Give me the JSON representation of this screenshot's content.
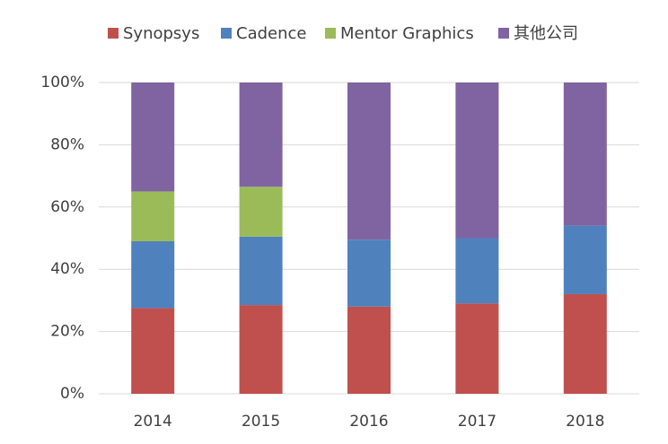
{
  "chart_data": {
    "type": "stacked_bar",
    "categories": [
      "2014",
      "2015",
      "2016",
      "2017",
      "2018"
    ],
    "series": [
      {
        "name": "Synopsys",
        "color": "#c0504d",
        "values": [
          27.5,
          28.5,
          28,
          29,
          32
        ]
      },
      {
        "name": "Cadence",
        "color": "#4f81bd",
        "values": [
          21.5,
          22,
          21.5,
          21,
          22
        ]
      },
      {
        "name": "Mentor Graphics",
        "color": "#9bbb59",
        "values": [
          16,
          16,
          0,
          0,
          0
        ]
      },
      {
        "name": "其他公司",
        "color": "#8064a2",
        "values": [
          35,
          33.5,
          50.5,
          50,
          46
        ]
      }
    ],
    "ylim": [
      0,
      100
    ],
    "yticks": [
      {
        "value": 0,
        "label": "0%"
      },
      {
        "value": 20,
        "label": "20%"
      },
      {
        "value": 40,
        "label": "40%"
      },
      {
        "value": 60,
        "label": "60%"
      },
      {
        "value": 80,
        "label": "80%"
      },
      {
        "value": 100,
        "label": "100%"
      }
    ],
    "grid": true,
    "legend": "top"
  }
}
